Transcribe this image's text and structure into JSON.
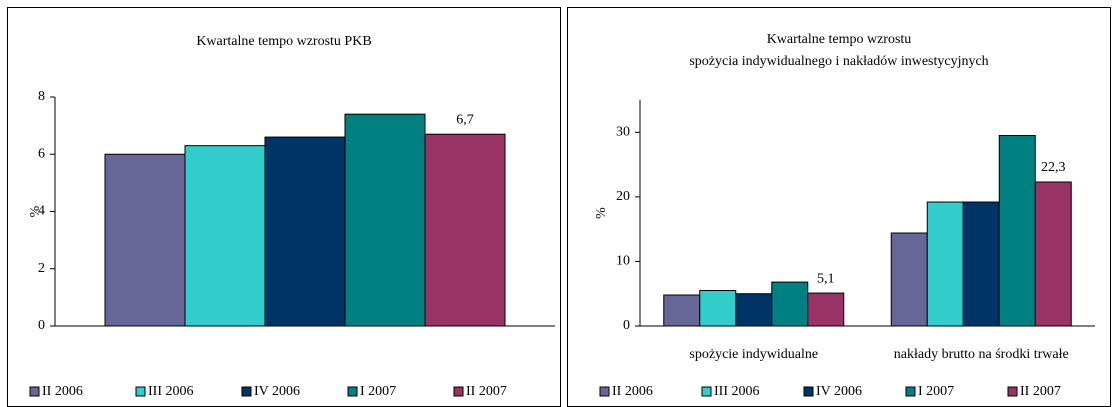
{
  "chart_data": [
    {
      "type": "bar",
      "title": [
        "Kwartalne tempo wzrostu PKB"
      ],
      "ylabel": "%",
      "categories": [
        null
      ],
      "series": [
        {
          "name": "II 2006",
          "color": "#666699",
          "values": [
            6.0
          ]
        },
        {
          "name": "III 2006",
          "color": "#33cccc",
          "values": [
            6.3
          ]
        },
        {
          "name": "IV 2006",
          "color": "#003366",
          "values": [
            6.6
          ]
        },
        {
          "name": "I 2007",
          "color": "#008080",
          "values": [
            7.4
          ]
        },
        {
          "name": "II 2007",
          "color": "#993366",
          "values": [
            6.7
          ],
          "value_labels": [
            "6,7"
          ]
        }
      ],
      "ylim": [
        0,
        8
      ],
      "yticks": [
        0,
        2,
        4,
        6,
        8
      ],
      "grid": false,
      "legend": "bottom"
    },
    {
      "type": "bar",
      "title": [
        "Kwartalne tempo wzrostu",
        "spożycia indywidualnego i nakładów inwestycyjnych"
      ],
      "ylabel": "%",
      "categories": [
        "spożycie indywidualne",
        "nakłady brutto na środki trwałe"
      ],
      "series": [
        {
          "name": "II 2006",
          "color": "#666699",
          "values": [
            4.8,
            14.4
          ]
        },
        {
          "name": "III 2006",
          "color": "#33cccc",
          "values": [
            5.5,
            19.2
          ]
        },
        {
          "name": "IV 2006",
          "color": "#003366",
          "values": [
            5.0,
            19.2
          ]
        },
        {
          "name": "I 2007",
          "color": "#008080",
          "values": [
            6.8,
            29.5
          ]
        },
        {
          "name": "II 2007",
          "color": "#993366",
          "values": [
            5.1,
            22.3
          ],
          "value_labels": [
            "5,1",
            "22,3"
          ]
        }
      ],
      "ylim": [
        0,
        35
      ],
      "yticks": [
        0,
        10,
        20,
        30
      ],
      "grid": false,
      "legend": "bottom"
    }
  ]
}
